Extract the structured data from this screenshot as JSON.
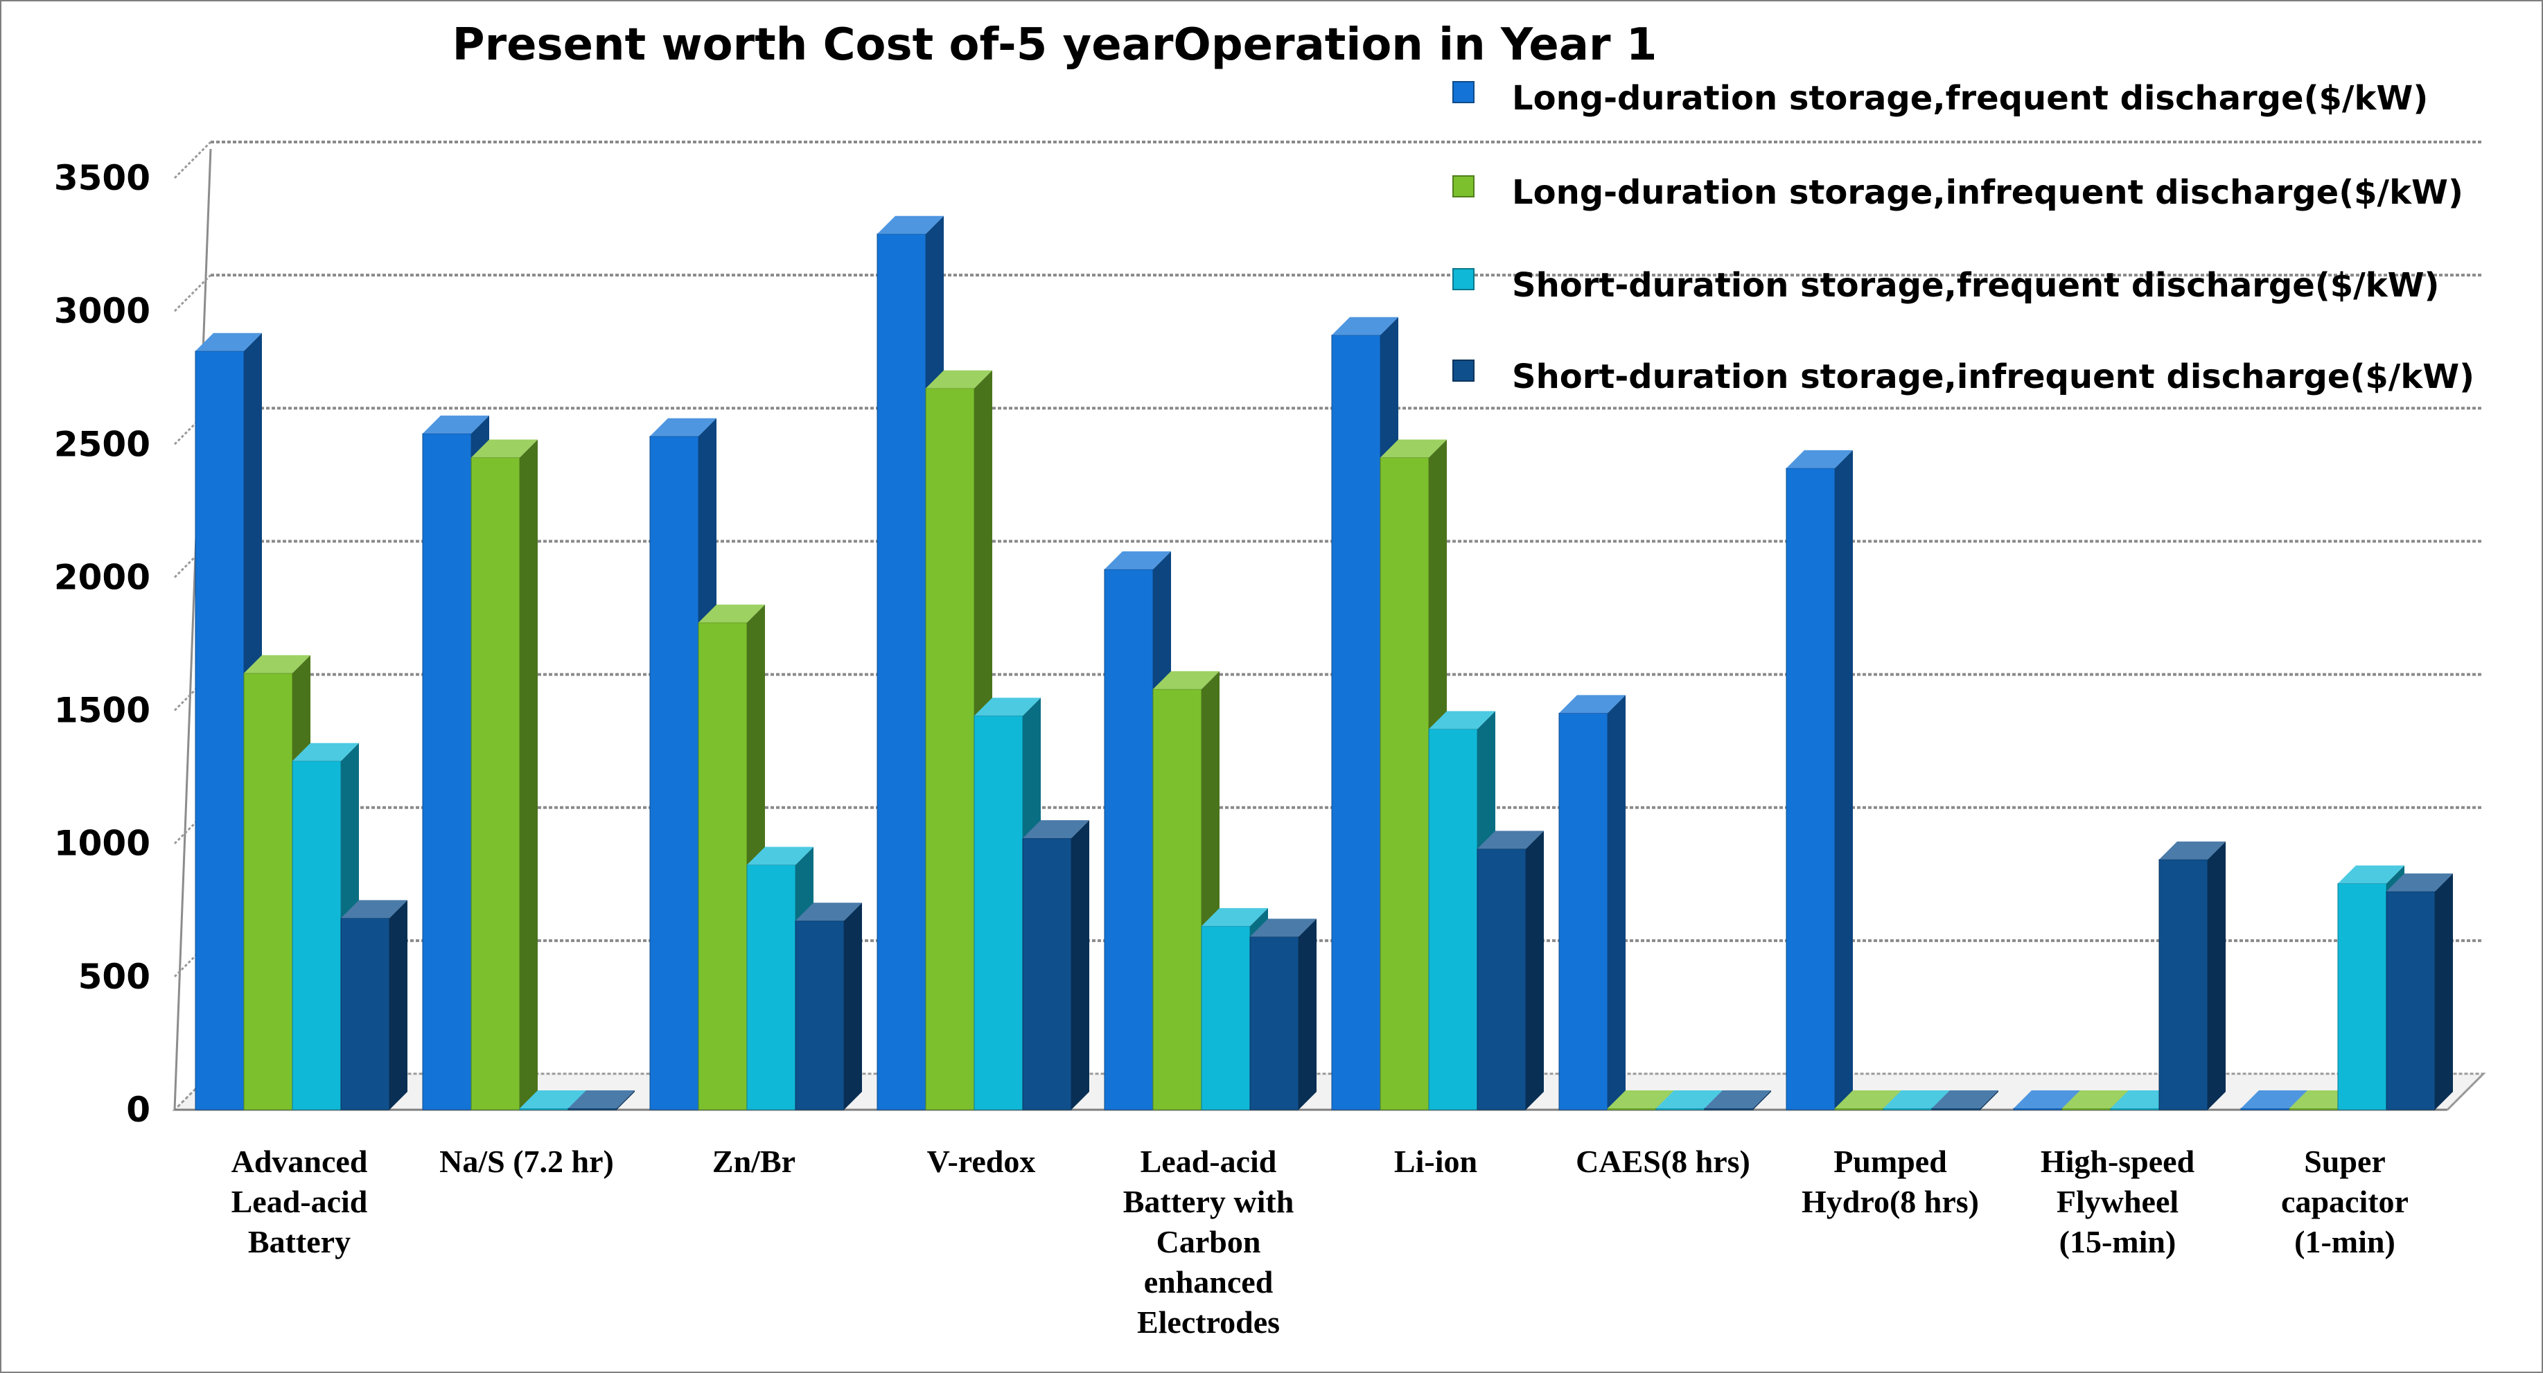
{
  "chart_data": {
    "type": "bar",
    "title": "Present worth Cost of-5 yearOperation in Year 1",
    "xlabel": "",
    "ylabel": "",
    "ylim": [
      0,
      3500
    ],
    "yticks": [
      0,
      500,
      1000,
      1500,
      2000,
      2500,
      3000,
      3500
    ],
    "grid": true,
    "legend_position": "top-right",
    "categories": [
      "Advanced Lead-acid Battery",
      "Na/S (7.2 hr)",
      "Zn/Br",
      "V-redox",
      "Lead-acid Battery with Carbon enhanced Electrodes",
      "Li-ion",
      "CAES(8 hrs)",
      "Pumped Hydro(8 hrs)",
      "High-speed Flywheel (15-min)",
      "Super capacitor (1-min)"
    ],
    "category_lines": [
      [
        "Advanced",
        "Lead-acid",
        "Battery"
      ],
      [
        "Na/S (7.2 hr)"
      ],
      [
        "Zn/Br"
      ],
      [
        "V-redox"
      ],
      [
        "Lead-acid",
        "Battery with",
        "Carbon",
        "enhanced",
        "Electrodes"
      ],
      [
        "Li-ion"
      ],
      [
        "CAES(8 hrs)"
      ],
      [
        "Pumped",
        "Hydro(8 hrs)"
      ],
      [
        "High-speed",
        "Flywheel",
        "(15-min)"
      ],
      [
        "Super",
        "capacitor",
        "(1-min)"
      ]
    ],
    "series": [
      {
        "name": "Long-duration storage,frequent discharge($/kW)",
        "color": "#1473d6",
        "values": [
          2850,
          2540,
          2530,
          3290,
          2030,
          2910,
          1490,
          2410,
          0,
          0
        ]
      },
      {
        "name": "Long-duration storage,infrequent discharge($/kW)",
        "color": "#7cc12d",
        "values": [
          1640,
          2450,
          1830,
          2710,
          1580,
          2450,
          0,
          0,
          0,
          0
        ]
      },
      {
        "name": "Short-duration storage,frequent discharge($/kW)",
        "color": "#10b8d8",
        "values": [
          1310,
          0,
          920,
          1480,
          690,
          1430,
          0,
          0,
          0,
          850
        ]
      },
      {
        "name": "Short-duration storage,infrequent discharge($/kW)",
        "color": "#0f4f8c",
        "values": [
          720,
          0,
          710,
          1020,
          650,
          980,
          0,
          0,
          940,
          820
        ]
      }
    ]
  }
}
